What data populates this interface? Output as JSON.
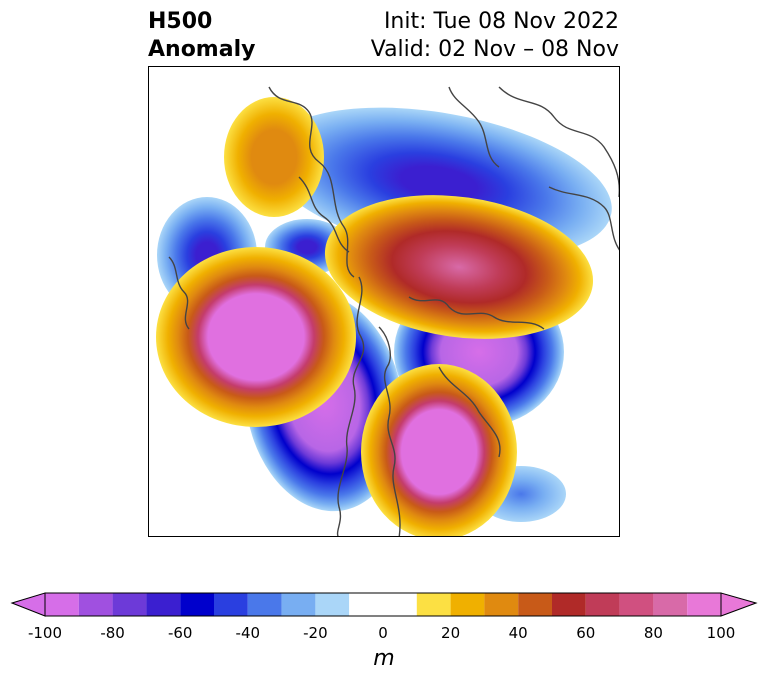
{
  "header": {
    "title_line1": "H500",
    "title_line2": "Anomaly",
    "init": "Init: Tue 08 Nov 2022",
    "valid": "Valid: 02 Nov – 08 Nov"
  },
  "colorbar": {
    "unit": "m",
    "ticks": [
      "-100",
      "-80",
      "-60",
      "-40",
      "-20",
      "0",
      "20",
      "40",
      "60",
      "80",
      "100"
    ],
    "levels": [
      -100,
      -90,
      -80,
      -70,
      -60,
      -50,
      -40,
      -30,
      -20,
      -10,
      10,
      20,
      30,
      40,
      50,
      60,
      70,
      80,
      90,
      100
    ],
    "colors": [
      "#d66ee8",
      "#a050e0",
      "#6d3ad8",
      "#3b1fd0",
      "#0000cc",
      "#2a3fe0",
      "#4a78ea",
      "#78aef2",
      "#aad6f8",
      "#ffffff",
      "#fce043",
      "#f0b000",
      "#e08a10",
      "#c85a18",
      "#b02a28",
      "#c03c58",
      "#d05080",
      "#d86aa8",
      "#e878d8"
    ],
    "under_color": "#d66ee8",
    "over_color": "#e878d8"
  }
}
